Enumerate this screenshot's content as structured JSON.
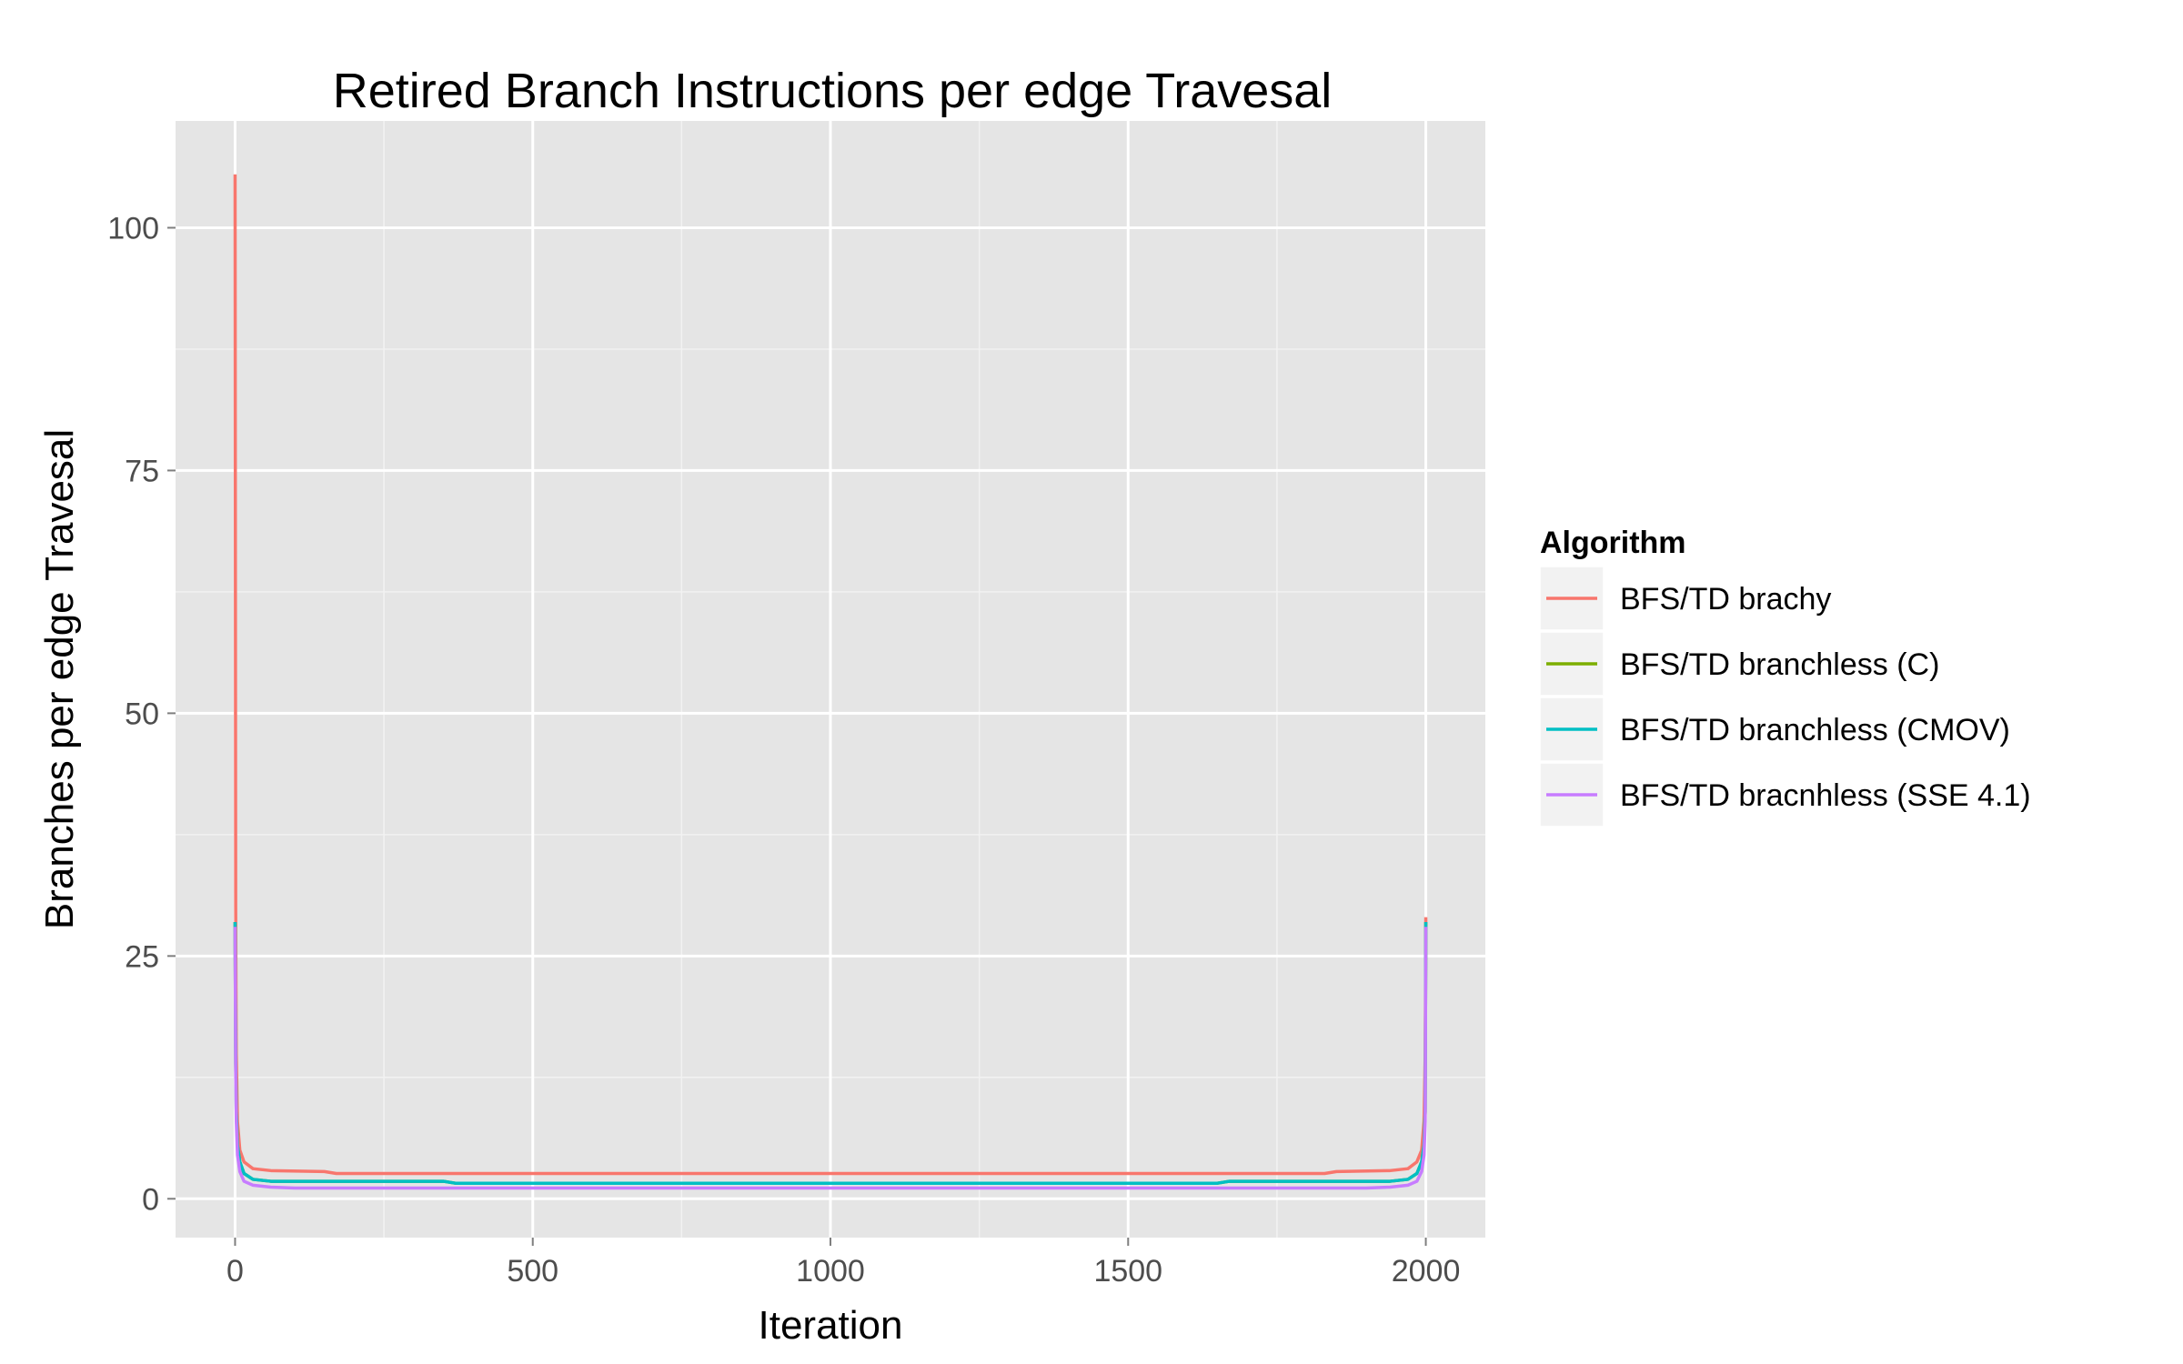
{
  "chart_data": {
    "type": "line",
    "title": "Retired Branch Instructions per edge Travesal",
    "xlabel": "Iteration",
    "ylabel": "Branches per edge Travesal",
    "xlim": [
      -100,
      2100
    ],
    "ylim": [
      -4,
      111
    ],
    "x_ticks": [
      0,
      500,
      1000,
      1500,
      2000
    ],
    "x_tick_labels": [
      "0",
      "500",
      "1000",
      "1500",
      "2000"
    ],
    "y_ticks": [
      0,
      25,
      50,
      75,
      100
    ],
    "y_tick_labels": [
      "0",
      "25",
      "50",
      "75",
      "100"
    ],
    "grid": true,
    "background": "#e5e5e5",
    "legend": {
      "title": "Algorithm",
      "position": "right"
    },
    "series": [
      {
        "name": "BFS/TD brachy",
        "color": "#f8766d",
        "x": [
          0,
          1,
          2,
          4,
          8,
          15,
          30,
          60,
          150,
          170,
          500,
          1000,
          1500,
          1830,
          1850,
          1940,
          1970,
          1985,
          1993,
          1997,
          1999,
          2000
        ],
        "y": [
          105.5,
          30,
          15,
          8,
          5,
          3.8,
          3.1,
          2.9,
          2.8,
          2.6,
          2.6,
          2.6,
          2.6,
          2.6,
          2.8,
          2.9,
          3.1,
          3.8,
          5,
          8,
          15,
          29
        ]
      },
      {
        "name": "BFS/TD branchless (C)",
        "color": "#7cae00",
        "x": [
          0,
          1,
          2,
          4,
          8,
          15,
          30,
          60,
          350,
          370,
          500,
          1000,
          1500,
          1650,
          1670,
          1940,
          1970,
          1985,
          1993,
          1997,
          1999,
          2000
        ],
        "y": [
          28.5,
          14,
          9,
          5.5,
          3.8,
          2.6,
          2.0,
          1.8,
          1.8,
          1.6,
          1.6,
          1.6,
          1.6,
          1.6,
          1.8,
          1.8,
          2.0,
          2.6,
          3.8,
          5.5,
          9,
          28.5
        ]
      },
      {
        "name": "BFS/TD branchless (CMOV)",
        "color": "#00bfc4",
        "x": [
          0,
          1,
          2,
          4,
          8,
          15,
          30,
          60,
          350,
          370,
          500,
          1000,
          1500,
          1650,
          1670,
          1940,
          1970,
          1985,
          1993,
          1997,
          1999,
          2000
        ],
        "y": [
          28.5,
          14,
          9,
          5.5,
          3.8,
          2.6,
          2.0,
          1.8,
          1.8,
          1.6,
          1.6,
          1.6,
          1.6,
          1.6,
          1.8,
          1.8,
          2.0,
          2.6,
          3.8,
          5.5,
          9,
          28.5
        ]
      },
      {
        "name": "BFS/TD bracnhless (SSE 4.1)",
        "color": "#c77cff",
        "x": [
          0,
          1,
          2,
          4,
          8,
          15,
          30,
          60,
          100,
          500,
          1000,
          1500,
          1900,
          1940,
          1970,
          1985,
          1993,
          1997,
          1999,
          2000
        ],
        "y": [
          28,
          13,
          8,
          4.5,
          2.8,
          1.8,
          1.4,
          1.2,
          1.1,
          1.1,
          1.1,
          1.1,
          1.1,
          1.2,
          1.4,
          1.8,
          2.8,
          4.5,
          8,
          28
        ]
      }
    ]
  }
}
